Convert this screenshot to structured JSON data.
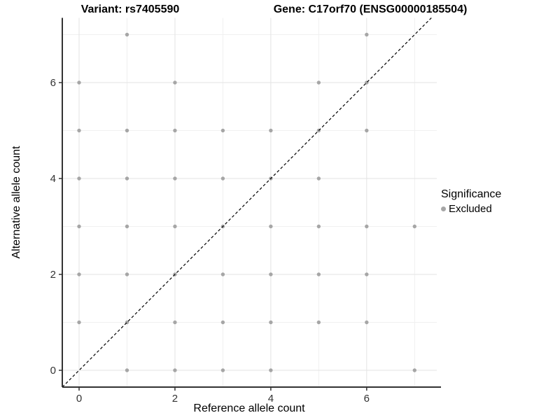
{
  "titles": {
    "variant": "Variant: rs7405590",
    "gene": "Gene: C17orf70 (ENSG00000185504)"
  },
  "axes": {
    "x_label": "Reference allele count",
    "y_label": "Alternative allele count",
    "x_tick_labels": [
      "0",
      "2",
      "4",
      "6"
    ],
    "y_tick_labels": [
      "0",
      "2",
      "4",
      "6"
    ]
  },
  "legend": {
    "title": "Significance",
    "items": [
      {
        "label": "Excluded",
        "color": "#a6a6a6",
        "marker": "dot"
      }
    ]
  },
  "colors": {
    "point": "#a6a6a6",
    "major_grid": "#e3e3e3",
    "minor_grid": "#f0f0f0",
    "axis_line": "#333333",
    "tick_text": "#333333",
    "identity_line": "#000000",
    "background": "#ffffff"
  },
  "chart_data": {
    "type": "scatter",
    "title_left": "Variant: rs7405590",
    "title_right": "Gene: C17orf70 (ENSG00000185504)",
    "xlabel": "Reference allele count",
    "ylabel": "Alternative allele count",
    "xlim": [
      -0.35,
      7.35
    ],
    "ylim": [
      -0.35,
      7.35
    ],
    "x_ticks": [
      0,
      2,
      4,
      6
    ],
    "y_ticks": [
      0,
      2,
      4,
      6
    ],
    "x_minor_ticks": [
      1,
      3,
      5,
      7
    ],
    "y_minor_ticks": [
      1,
      3,
      5,
      7
    ],
    "grid": true,
    "legend_position": "right",
    "series": [
      {
        "name": "Excluded",
        "color": "#a6a6a6",
        "points": [
          [
            1,
            7
          ],
          [
            6,
            7
          ],
          [
            0,
            6
          ],
          [
            2,
            6
          ],
          [
            5,
            6
          ],
          [
            6,
            6
          ],
          [
            0,
            5
          ],
          [
            1,
            5
          ],
          [
            2,
            5
          ],
          [
            3,
            5
          ],
          [
            4,
            5
          ],
          [
            5,
            5
          ],
          [
            6,
            5
          ],
          [
            0,
            4
          ],
          [
            1,
            4
          ],
          [
            2,
            4
          ],
          [
            3,
            4
          ],
          [
            4,
            4
          ],
          [
            5,
            4
          ],
          [
            0,
            3
          ],
          [
            1,
            3
          ],
          [
            2,
            3
          ],
          [
            3,
            3
          ],
          [
            4,
            3
          ],
          [
            5,
            3
          ],
          [
            6,
            3
          ],
          [
            7,
            3
          ],
          [
            0,
            2
          ],
          [
            1,
            2
          ],
          [
            2,
            2
          ],
          [
            3,
            2
          ],
          [
            4,
            2
          ],
          [
            5,
            2
          ],
          [
            6,
            2
          ],
          [
            0,
            1
          ],
          [
            1,
            1
          ],
          [
            2,
            1
          ],
          [
            3,
            1
          ],
          [
            4,
            1
          ],
          [
            5,
            1
          ],
          [
            6,
            1
          ],
          [
            1,
            0
          ],
          [
            2,
            0
          ],
          [
            3,
            0
          ],
          [
            4,
            0
          ],
          [
            7,
            0
          ]
        ]
      }
    ],
    "reference_line": {
      "style": "dashed",
      "from": [
        -0.35,
        -0.35
      ],
      "to": [
        7.35,
        7.35
      ],
      "color": "#000000",
      "meaning": "identity line y = x"
    }
  }
}
